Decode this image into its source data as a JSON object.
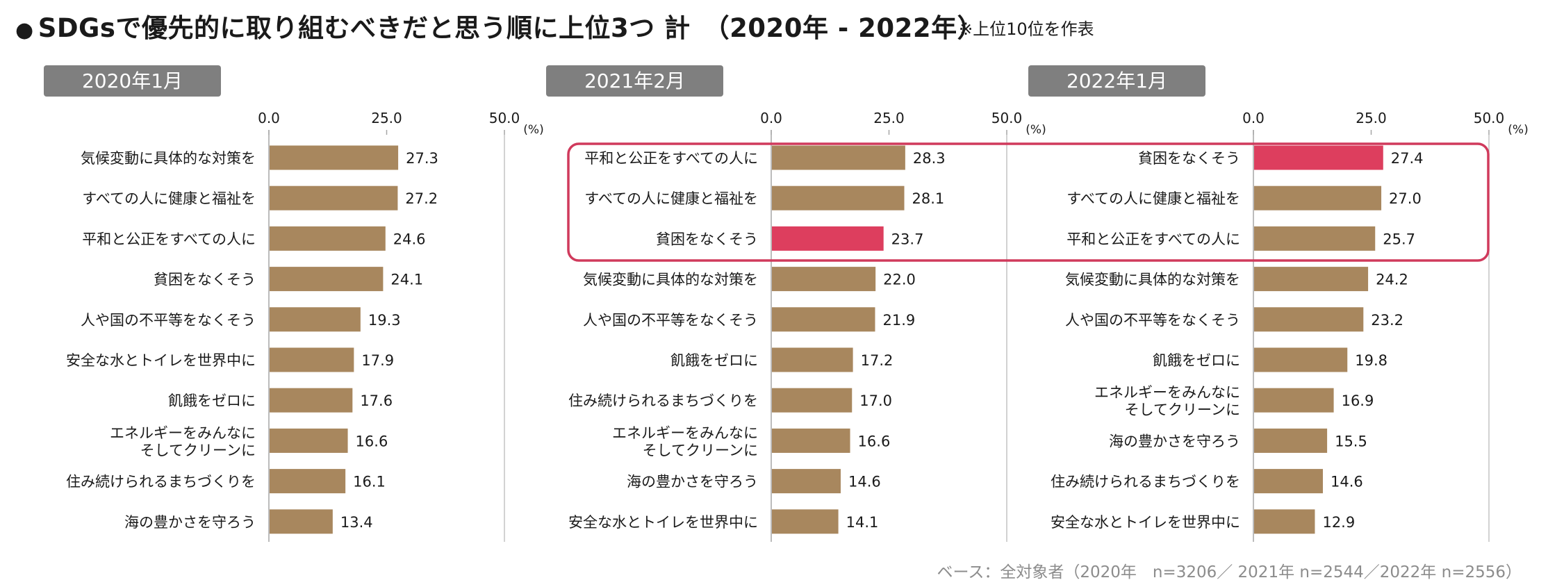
{
  "title": "SDGsで優先的に取り組むべきだと思う順に上位3つ 計　（2020年 - 2022年）",
  "note": "※上位10位を作表",
  "footer": "ベース：全対象者（2020年　n=3206／ 2021年 n=2544／2022年 n=2556）",
  "colors": {
    "bar": "#a8875e",
    "highlight": "#dd3e5e",
    "frame": "#d03a5c",
    "axis": "#a6a6a6",
    "label_bg": "#7f7f7f"
  },
  "chart_data": [
    {
      "type": "bar",
      "orientation": "horizontal",
      "title": "2020年1月",
      "unit": "(%)",
      "xlim": [
        0,
        50
      ],
      "ticks": [
        "0.0",
        "25.0",
        "50.0"
      ],
      "tick_values": [
        0,
        25,
        50
      ],
      "categories": [
        "気候変動に具体的な対策を",
        "すべての人に健康と福祉を",
        "平和と公正をすべての人に",
        "貧困をなくそう",
        "人や国の不平等をなくそう",
        "安全な水とトイレを世界中に",
        "飢餓をゼロに",
        "エネルギーをみんなに\nそしてクリーンに",
        "住み続けられるまちづくりを",
        "海の豊かさを守ろう"
      ],
      "values": [
        27.3,
        27.2,
        24.6,
        24.1,
        19.3,
        17.9,
        17.6,
        16.6,
        16.1,
        13.4
      ],
      "labels": [
        "27.3",
        "27.2",
        "24.6",
        "24.1",
        "19.3",
        "17.9",
        "17.6",
        "16.6",
        "16.1",
        "13.4"
      ],
      "highlight_index": -1
    },
    {
      "type": "bar",
      "orientation": "horizontal",
      "title": "2021年2月",
      "unit": "(%)",
      "xlim": [
        0,
        50
      ],
      "ticks": [
        "0.0",
        "25.0",
        "50.0"
      ],
      "tick_values": [
        0,
        25,
        50
      ],
      "categories": [
        "平和と公正をすべての人に",
        "すべての人に健康と福祉を",
        "貧困をなくそう",
        "気候変動に具体的な対策を",
        "人や国の不平等をなくそう",
        "飢餓をゼロに",
        "住み続けられるまちづくりを",
        "エネルギーをみんなに\nそしてクリーンに",
        "海の豊かさを守ろう",
        "安全な水とトイレを世界中に"
      ],
      "values": [
        28.3,
        28.1,
        23.7,
        22.0,
        21.9,
        17.2,
        17.0,
        16.6,
        14.6,
        14.1
      ],
      "labels": [
        "28.3",
        "28.1",
        "23.7",
        "22.0",
        "21.9",
        "17.2",
        "17.0",
        "16.6",
        "14.6",
        "14.1"
      ],
      "highlight_index": 2
    },
    {
      "type": "bar",
      "orientation": "horizontal",
      "title": "2022年1月",
      "unit": "(%)",
      "xlim": [
        0,
        50
      ],
      "ticks": [
        "0.0",
        "25.0",
        "50.0"
      ],
      "tick_values": [
        0,
        25,
        50
      ],
      "categories": [
        "貧困をなくそう",
        "すべての人に健康と福祉を",
        "平和と公正をすべての人に",
        "気候変動に具体的な対策を",
        "人や国の不平等をなくそう",
        "飢餓をゼロに",
        "エネルギーをみんなに\nそしてクリーンに",
        "海の豊かさを守ろう",
        "住み続けられるまちづくりを",
        "安全な水とトイレを世界中に"
      ],
      "values": [
        27.4,
        27.0,
        25.7,
        24.2,
        23.2,
        19.8,
        16.9,
        15.5,
        14.6,
        12.9
      ],
      "labels": [
        "27.4",
        "27.0",
        "25.7",
        "24.2",
        "23.2",
        "19.8",
        "16.9",
        "15.5",
        "14.6",
        "12.9"
      ],
      "highlight_index": 0
    }
  ]
}
